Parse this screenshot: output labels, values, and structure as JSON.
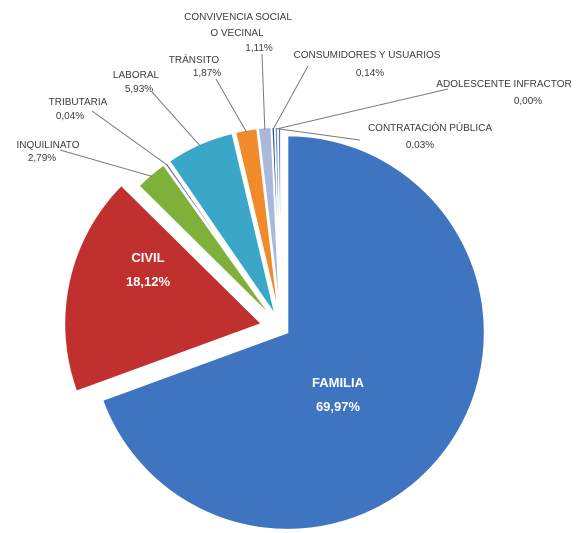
{
  "chart_data": {
    "type": "pie",
    "title": "",
    "slices": [
      {
        "label": "FAMILIA",
        "value": 69.97,
        "value_label": "69,97%",
        "color": "#3f74c0"
      },
      {
        "label": "CIVIL",
        "value": 18.12,
        "value_label": "18,12%",
        "color": "#c0302e"
      },
      {
        "label": "INQUILINATO",
        "value": 2.79,
        "value_label": "2,79%",
        "color": "#7fb13a"
      },
      {
        "label": "TRIBUTARIA",
        "value": 0.04,
        "value_label": "0,04%",
        "color": "#8a60b0"
      },
      {
        "label": "LABORAL",
        "value": 5.93,
        "value_label": "5,93%",
        "color": "#3aa7c9"
      },
      {
        "label": "TRÁNSITO",
        "value": 1.87,
        "value_label": "1,87%",
        "color": "#f08a2a"
      },
      {
        "label": "CONVIVENCIA SOCIAL O VECINAL",
        "label_lines": [
          "CONVIVENCIA SOCIAL",
          "O VECINAL"
        ],
        "value": 1.11,
        "value_label": "1,11%",
        "color": "#a9b9da"
      },
      {
        "label": "CONSUMIDORES Y USUARIOS",
        "value": 0.14,
        "value_label": "0,14%",
        "color": "#2f4f8a"
      },
      {
        "label": "ADOLESCENTE INFRACTOR",
        "value": 0.0,
        "value_label": "0,00%",
        "color": "#6d8fd0"
      },
      {
        "label": "CONTRATACIÓN PÚBLICA",
        "value": 0.03,
        "value_label": "0,03%",
        "color": "#4f80c8"
      }
    ],
    "legend": "none",
    "labels": "outside with leader lines; FAMILIA and CIVIL inside"
  }
}
